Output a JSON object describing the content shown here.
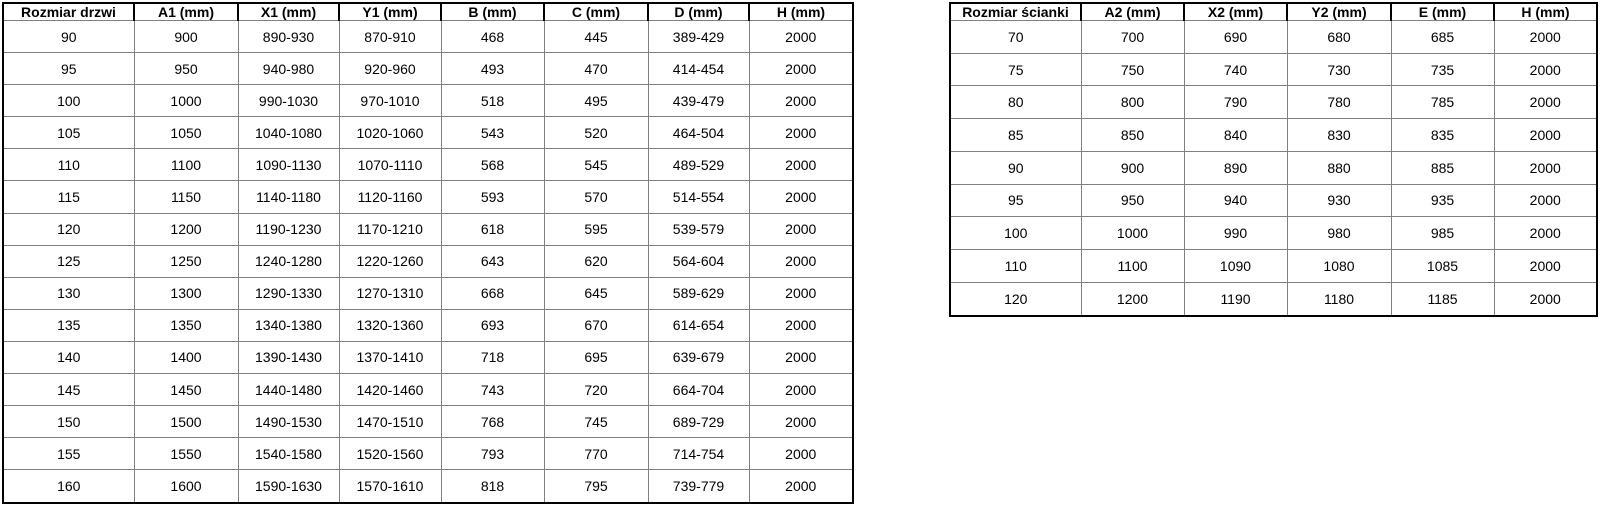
{
  "door_table": {
    "name": "door sizes table",
    "headers": [
      "Rozmiar drzwi",
      "A1 (mm)",
      "X1 (mm)",
      "Y1 (mm)",
      "B (mm)",
      "C (mm)",
      "D (mm)",
      "H (mm)"
    ],
    "rows": [
      [
        "90",
        "900",
        "890-930",
        "870-910",
        "468",
        "445",
        "389-429",
        "2000"
      ],
      [
        "95",
        "950",
        "940-980",
        "920-960",
        "493",
        "470",
        "414-454",
        "2000"
      ],
      [
        "100",
        "1000",
        "990-1030",
        "970-1010",
        "518",
        "495",
        "439-479",
        "2000"
      ],
      [
        "105",
        "1050",
        "1040-1080",
        "1020-1060",
        "543",
        "520",
        "464-504",
        "2000"
      ],
      [
        "110",
        "1100",
        "1090-1130",
        "1070-1110",
        "568",
        "545",
        "489-529",
        "2000"
      ],
      [
        "115",
        "1150",
        "1140-1180",
        "1120-1160",
        "593",
        "570",
        "514-554",
        "2000"
      ],
      [
        "120",
        "1200",
        "1190-1230",
        "1170-1210",
        "618",
        "595",
        "539-579",
        "2000"
      ],
      [
        "125",
        "1250",
        "1240-1280",
        "1220-1260",
        "643",
        "620",
        "564-604",
        "2000"
      ],
      [
        "130",
        "1300",
        "1290-1330",
        "1270-1310",
        "668",
        "645",
        "589-629",
        "2000"
      ],
      [
        "135",
        "1350",
        "1340-1380",
        "1320-1360",
        "693",
        "670",
        "614-654",
        "2000"
      ],
      [
        "140",
        "1400",
        "1390-1430",
        "1370-1410",
        "718",
        "695",
        "639-679",
        "2000"
      ],
      [
        "145",
        "1450",
        "1440-1480",
        "1420-1460",
        "743",
        "720",
        "664-704",
        "2000"
      ],
      [
        "150",
        "1500",
        "1490-1530",
        "1470-1510",
        "768",
        "745",
        "689-729",
        "2000"
      ],
      [
        "155",
        "1550",
        "1540-1580",
        "1520-1560",
        "793",
        "770",
        "714-754",
        "2000"
      ],
      [
        "160",
        "1600",
        "1590-1630",
        "1570-1610",
        "818",
        "795",
        "739-779",
        "2000"
      ]
    ]
  },
  "wall_table": {
    "name": "wall panel sizes table",
    "headers": [
      "Rozmiar ścianki",
      "A2 (mm)",
      "X2 (mm)",
      "Y2 (mm)",
      "E (mm)",
      "H (mm)"
    ],
    "rows": [
      [
        "70",
        "700",
        "690",
        "680",
        "685",
        "2000"
      ],
      [
        "75",
        "750",
        "740",
        "730",
        "735",
        "2000"
      ],
      [
        "80",
        "800",
        "790",
        "780",
        "785",
        "2000"
      ],
      [
        "85",
        "850",
        "840",
        "830",
        "835",
        "2000"
      ],
      [
        "90",
        "900",
        "890",
        "880",
        "885",
        "2000"
      ],
      [
        "95",
        "950",
        "940",
        "930",
        "935",
        "2000"
      ],
      [
        "100",
        "1000",
        "990",
        "980",
        "985",
        "2000"
      ],
      [
        "110",
        "1100",
        "1090",
        "1080",
        "1085",
        "2000"
      ],
      [
        "120",
        "1200",
        "1190",
        "1180",
        "1185",
        "2000"
      ]
    ]
  },
  "colors": {
    "background": "#ffffff",
    "outer_border": "#000000",
    "inner_grid": "#808080",
    "text": "#000000"
  }
}
